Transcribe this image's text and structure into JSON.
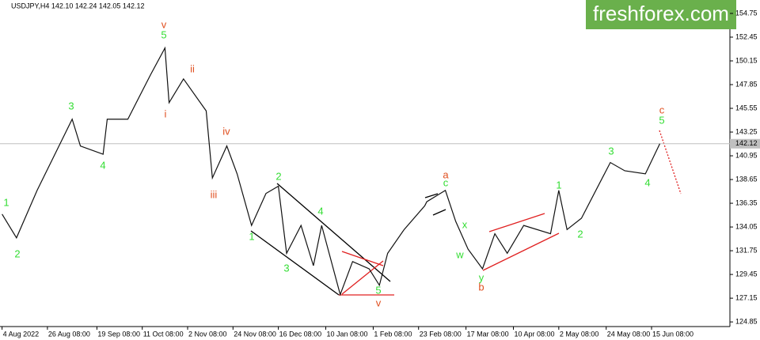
{
  "chart_data": {
    "type": "line",
    "title": "USDJPY,H4 142.10 142.24 142.05 142.12",
    "watermark": "freshforex.com",
    "color": "#111111",
    "x": [
      0,
      7,
      17,
      34,
      38,
      49,
      51,
      61,
      72,
      79,
      81,
      88,
      99,
      102,
      109,
      114,
      121,
      128,
      134,
      138,
      145,
      151,
      155,
      164,
      170,
      178,
      183,
      187,
      195,
      205,
      206,
      215,
      220,
      226,
      233,
      239,
      245,
      253,
      266,
      270,
      274,
      281,
      295,
      302,
      312,
      319
    ],
    "values": [
      135.3,
      133.0,
      137.6,
      144.5,
      141.9,
      141.1,
      144.5,
      144.5,
      148.8,
      151.4,
      146.1,
      148.4,
      145.3,
      138.8,
      141.9,
      139.2,
      134.2,
      137.3,
      138.0,
      131.5,
      134.2,
      130.3,
      134.2,
      127.5,
      130.7,
      130.0,
      128.4,
      131.5,
      133.8,
      136.1,
      136.5,
      137.6,
      134.6,
      131.9,
      130.0,
      133.4,
      131.5,
      134.2,
      133.4,
      137.6,
      133.8,
      134.9,
      140.3,
      139.5,
      139.2,
      142.12
    ],
    "current_price": 142.12,
    "xlim": [
      -1,
      353
    ],
    "ylim": [
      124.4,
      156.05
    ],
    "xticks": [
      {
        "value": 0,
        "label": "4 Aug 2022"
      },
      {
        "value": 22,
        "label": "26 Aug 08:00"
      },
      {
        "value": 46,
        "label": "19 Sep 08:00"
      },
      {
        "value": 68,
        "label": "11 Oct 08:00"
      },
      {
        "value": 90,
        "label": "2 Nov 08:00"
      },
      {
        "value": 112,
        "label": "24 Nov 08:00"
      },
      {
        "value": 134,
        "label": "16 Dec 08:00"
      },
      {
        "value": 157,
        "label": "10 Jan 08:00"
      },
      {
        "value": 180,
        "label": "1 Feb 08:00"
      },
      {
        "value": 202,
        "label": "23 Feb 08:00"
      },
      {
        "value": 225,
        "label": "17 Mar 08:00"
      },
      {
        "value": 248,
        "label": "10 Apr 08:00"
      },
      {
        "value": 270,
        "label": "2 May 08:00"
      },
      {
        "value": 293,
        "label": "24 May 08:00"
      },
      {
        "value": 315,
        "label": "15 Jun 08:00"
      }
    ],
    "yticks": [
      154.75,
      152.45,
      150.15,
      147.85,
      145.55,
      143.25,
      140.95,
      138.65,
      136.35,
      134.05,
      131.75,
      129.45,
      127.15,
      124.85
    ],
    "annotations": [
      {
        "text": "1",
        "color": "#33dd33"
      },
      {
        "text": "2",
        "color": "#33dd33"
      },
      {
        "text": "3",
        "color": "#33dd33"
      },
      {
        "text": "4",
        "color": "#33dd33"
      },
      {
        "text": "5",
        "color": "#33dd33"
      },
      {
        "text": "v",
        "color": "#e05020"
      },
      {
        "text": "i",
        "color": "#e05020"
      },
      {
        "text": "ii",
        "color": "#e05020"
      },
      {
        "text": "iii",
        "color": "#e05020"
      },
      {
        "text": "iv",
        "color": "#e05020"
      },
      {
        "text": "1",
        "color": "#33dd33"
      },
      {
        "text": "2",
        "color": "#33dd33"
      },
      {
        "text": "3",
        "color": "#33dd33"
      },
      {
        "text": "4",
        "color": "#33dd33"
      },
      {
        "text": "5",
        "color": "#33dd33"
      },
      {
        "text": "v",
        "color": "#e05020"
      },
      {
        "text": "a",
        "color": "#e05020"
      },
      {
        "text": "c",
        "color": "#33dd33"
      },
      {
        "text": "x",
        "color": "#33dd33"
      },
      {
        "text": "w",
        "color": "#33dd33"
      },
      {
        "text": "y",
        "color": "#33dd33"
      },
      {
        "text": "b",
        "color": "#e05020"
      },
      {
        "text": "1",
        "color": "#33dd33"
      },
      {
        "text": "2",
        "color": "#33dd33"
      },
      {
        "text": "3",
        "color": "#33dd33"
      },
      {
        "text": "4",
        "color": "#33dd33"
      },
      {
        "text": "c",
        "color": "#e05020"
      },
      {
        "text": "5",
        "color": "#33dd33"
      }
    ]
  }
}
